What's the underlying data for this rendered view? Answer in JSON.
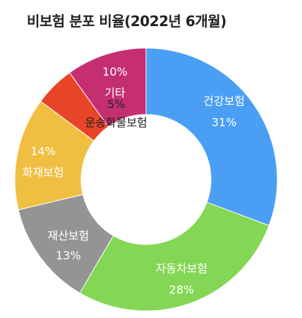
{
  "title": "비보험 분포 비율(2022년 6개월)",
  "chart_data": {
    "type": "pie",
    "donut": true,
    "title": "비보험 분포 비율(2022년 6개월)",
    "categories": [
      "건강보험",
      "자동차보험",
      "재산보험",
      "화재보험",
      "운송화물보험",
      "기타"
    ],
    "values": [
      31,
      28,
      13,
      14,
      5,
      10
    ],
    "value_labels": [
      "31%",
      "28%",
      "13%",
      "14%",
      "5%",
      "10%"
    ],
    "colors": [
      "#4a9ff5",
      "#84d755",
      "#949494",
      "#f0bf42",
      "#e84428",
      "#c52f72"
    ],
    "label_colors": [
      "#ffffff",
      "#ffffff",
      "#ffffff",
      "#ffffff",
      "#222222",
      "#ffffff"
    ],
    "legend": "none"
  }
}
